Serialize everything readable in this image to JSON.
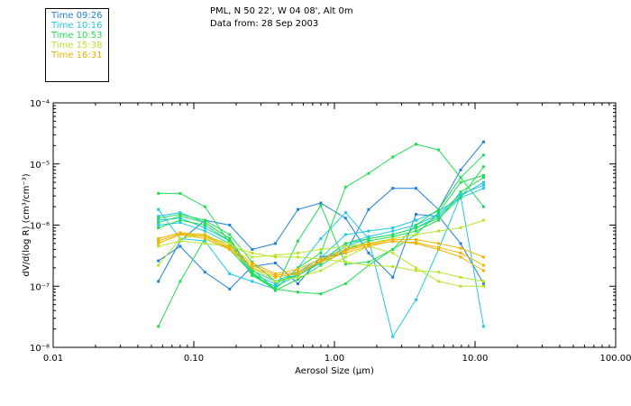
{
  "header": {
    "location": "PML, N 50 22', W 04 08', Alt 0m",
    "date_line": "Data from: 28 Sep 2003"
  },
  "legend": [
    {
      "label": "Time 09:26",
      "color": "#1e7fd8"
    },
    {
      "label": "Time 10:16",
      "color": "#1ec8e6"
    },
    {
      "label": "Time 10:53",
      "color": "#22dd55"
    },
    {
      "label": "Time 15:38",
      "color": "#b8e62a"
    },
    {
      "label": "Time 16:31",
      "color": "#f0b400"
    }
  ],
  "chart_data": {
    "type": "line",
    "title": "",
    "xlabel": "Aerosol Size (μm)",
    "ylabel": "dV/d(log R) (cm³/cm⁻³)",
    "xscale": "log",
    "yscale": "log",
    "xlim": [
      0.01,
      100
    ],
    "ylim": [
      1e-08,
      0.0001
    ],
    "xticks": [
      {
        "value": 0.01,
        "label": "0.01"
      },
      {
        "value": 0.1,
        "label": "0.10"
      },
      {
        "value": 1,
        "label": "1.00"
      },
      {
        "value": 10,
        "label": "10.00"
      },
      {
        "value": 100,
        "label": "100.00"
      }
    ],
    "yticks": [
      {
        "value": 1e-08,
        "label": "10⁻⁸"
      },
      {
        "value": 1e-07,
        "label": "10⁻⁷"
      },
      {
        "value": 1e-06,
        "label": "10⁻⁶"
      },
      {
        "value": 1e-05,
        "label": "10⁻⁵"
      },
      {
        "value": 0.0001,
        "label": "10⁻⁴"
      }
    ],
    "x": [
      0.056,
      0.08,
      0.12,
      0.18,
      0.26,
      0.38,
      0.55,
      0.8,
      1.2,
      1.75,
      2.6,
      3.8,
      5.5,
      7.9,
      11.5
    ],
    "series": [
      {
        "name": "09:26 a",
        "color": "#1e7fd8",
        "values": [
          1.2e-07,
          5.5e-07,
          1.2e-06,
          1e-06,
          4e-07,
          5e-07,
          1.8e-06,
          2.3e-06,
          1.3e-06,
          3.5e-07,
          1.4e-07,
          1.5e-06,
          1.4e-06,
          5e-07,
          1.1e-07
        ]
      },
      {
        "name": "09:26 b",
        "color": "#1e7fd8",
        "values": [
          2.6e-07,
          4.5e-07,
          1.7e-07,
          9e-08,
          2.1e-07,
          2.4e-07,
          1.1e-07,
          3e-07,
          3.5e-07,
          1.8e-06,
          4e-06,
          4e-06,
          1.8e-06,
          8e-06,
          2.3e-05
        ]
      },
      {
        "name": "10:16 a",
        "color": "#1ec8e6",
        "values": [
          1.8e-06,
          6e-07,
          5.5e-07,
          1.6e-07,
          1.2e-07,
          9e-08,
          2e-07,
          6e-07,
          1.6e-06,
          6e-07,
          1.5e-08,
          6e-08,
          4e-07,
          3e-06,
          2.2e-08
        ]
      },
      {
        "name": "10:16 b",
        "color": "#1ec8e6",
        "values": [
          1.4e-06,
          1.6e-06,
          1.1e-06,
          6e-07,
          1.8e-07,
          1.2e-07,
          1.7e-07,
          2.9e-07,
          7e-07,
          8e-07,
          9e-07,
          1.2e-06,
          1.7e-06,
          2.8e-06,
          4e-06
        ]
      },
      {
        "name": "10:16 c",
        "color": "#1ec8e6",
        "values": [
          1e-06,
          1.1e-06,
          8e-07,
          5e-07,
          1.5e-07,
          1e-07,
          1.5e-07,
          2.4e-07,
          4.5e-07,
          6e-07,
          7e-07,
          9e-07,
          1.4e-06,
          3e-06,
          5e-06
        ]
      },
      {
        "name": "10:16 d",
        "color": "#1ec8e6",
        "values": [
          1.2e-06,
          1.3e-06,
          9e-07,
          5.5e-07,
          1.6e-07,
          1.1e-07,
          1.6e-07,
          2.6e-07,
          5e-07,
          6.5e-07,
          8e-07,
          1e-06,
          1.5e-06,
          3.2e-06,
          4.5e-06
        ]
      },
      {
        "name": "10:53 a",
        "color": "#22dd55",
        "values": [
          2.2e-08,
          1.2e-07,
          6e-07,
          4e-07,
          1.6e-07,
          9e-08,
          8e-08,
          7.5e-08,
          1.1e-07,
          2.2e-07,
          4e-07,
          1e-06,
          1.8e-06,
          6e-06,
          1.4e-05
        ]
      },
      {
        "name": "10:53 b",
        "color": "#22dd55",
        "values": [
          3.3e-06,
          3.3e-06,
          2e-06,
          5e-07,
          1.5e-07,
          9e-08,
          2e-07,
          3.5e-07,
          4.2e-06,
          7e-06,
          1.3e-05,
          2.1e-05,
          1.7e-05,
          6e-06,
          2e-06
        ]
      },
      {
        "name": "10:53 c",
        "color": "#22dd55",
        "values": [
          1.3e-06,
          1.5e-06,
          1.2e-06,
          7e-07,
          2.5e-07,
          1.2e-07,
          1.5e-07,
          2.5e-07,
          5e-07,
          6e-07,
          7e-07,
          9e-07,
          1.3e-06,
          2.8e-06,
          9e-06
        ]
      },
      {
        "name": "10:53 d",
        "color": "#22dd55",
        "values": [
          1.1e-06,
          1.4e-06,
          1.1e-06,
          6e-07,
          1.7e-07,
          8.5e-08,
          1.3e-07,
          2.2e-07,
          4e-07,
          5.5e-07,
          6.5e-07,
          8e-07,
          1.2e-06,
          3.5e-06,
          6e-06
        ]
      },
      {
        "name": "10:53 e",
        "color": "#22dd55",
        "values": [
          9e-07,
          1.2e-06,
          1e-06,
          5.5e-07,
          1.9e-07,
          9e-08,
          5.5e-07,
          2.1e-06,
          2.3e-07,
          2.5e-07,
          4e-07,
          7e-07,
          1.6e-06,
          5e-06,
          6.5e-06
        ]
      },
      {
        "name": "15:38 a",
        "color": "#b8e62a",
        "values": [
          2.2e-07,
          6e-07,
          7e-07,
          4e-07,
          2e-07,
          1.2e-07,
          1.4e-07,
          1.8e-07,
          3e-07,
          4.5e-07,
          3.5e-07,
          2e-07,
          1.2e-07,
          1e-07,
          1e-07
        ]
      },
      {
        "name": "15:38 b",
        "color": "#b8e62a",
        "values": [
          6e-07,
          7.5e-07,
          6.5e-07,
          5e-07,
          3e-07,
          3.2e-07,
          3.5e-07,
          4e-07,
          4.5e-07,
          5e-07,
          6e-07,
          7e-07,
          8e-07,
          9e-07,
          1.2e-06
        ]
      },
      {
        "name": "15:38 c",
        "color": "#b8e62a",
        "values": [
          4.5e-07,
          5.5e-07,
          5e-07,
          4.5e-07,
          3.5e-07,
          3e-07,
          3e-07,
          2.8e-07,
          2.5e-07,
          2.2e-07,
          2.1e-07,
          1.8e-07,
          1.7e-07,
          1.4e-07,
          1.2e-07
        ]
      },
      {
        "name": "16:31 a",
        "color": "#f0b400",
        "values": [
          5e-07,
          7e-07,
          6e-07,
          4e-07,
          2e-07,
          1.4e-07,
          1.6e-07,
          2.5e-07,
          3.5e-07,
          4.5e-07,
          5.5e-07,
          5e-07,
          4e-07,
          3e-07,
          1.8e-07
        ]
      },
      {
        "name": "16:31 b",
        "color": "#f0b400",
        "values": [
          5.5e-07,
          7.2e-07,
          6.5e-07,
          4.2e-07,
          2.2e-07,
          1.5e-07,
          1.7e-07,
          2.6e-07,
          3.8e-07,
          4.8e-07,
          5.4e-07,
          5.2e-07,
          4.3e-07,
          3.5e-07,
          2.2e-07
        ]
      },
      {
        "name": "16:31 c",
        "color": "#f0b400",
        "values": [
          6e-07,
          7.5e-07,
          7e-07,
          4.5e-07,
          2.4e-07,
          1.6e-07,
          1.9e-07,
          2.8e-07,
          4e-07,
          5e-07,
          5.8e-07,
          5.8e-07,
          5e-07,
          4.2e-07,
          3e-07
        ]
      }
    ]
  }
}
